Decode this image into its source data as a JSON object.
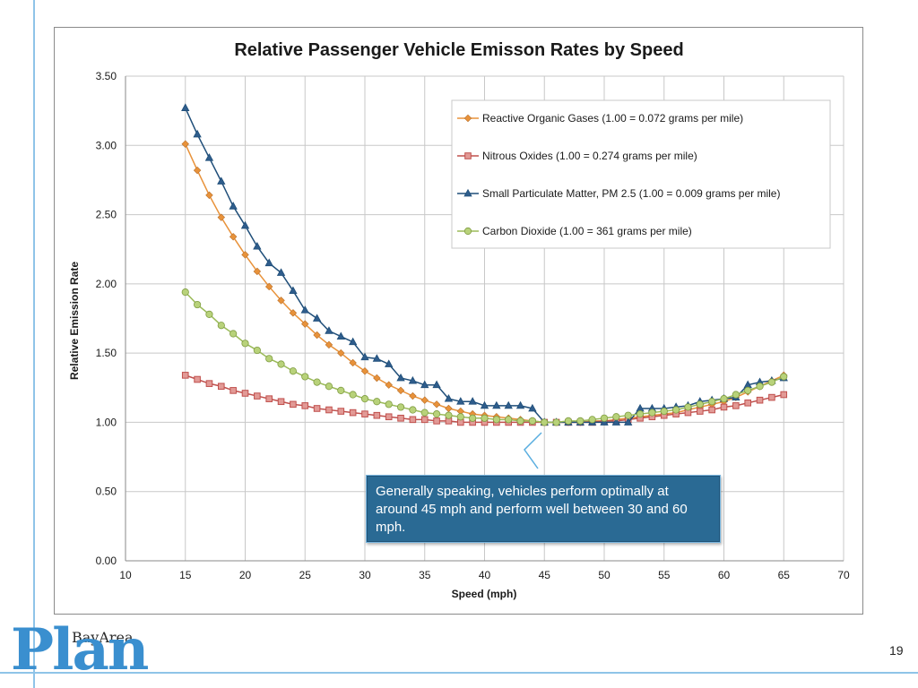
{
  "slide": {
    "page_number": "19",
    "logo": {
      "small_text": "BayArea",
      "big_text": "Plan"
    },
    "callout_text": "Generally speaking, vehicles perform optimally at around 45 mph and perform well between 30 and 60 mph."
  },
  "chart_data": {
    "type": "line",
    "title": "Relative Passenger Vehicle Emisson Rates by Speed",
    "xlabel": "Speed (mph)",
    "ylabel": "Relative Emission Rate",
    "xlim": [
      10,
      70
    ],
    "ylim": [
      0,
      3.5
    ],
    "xticks": [
      "10",
      "15",
      "20",
      "25",
      "30",
      "35",
      "40",
      "45",
      "50",
      "55",
      "60",
      "65",
      "70"
    ],
    "yticks": [
      "0.00",
      "0.50",
      "1.00",
      "1.50",
      "2.00",
      "2.50",
      "3.00",
      "3.50"
    ],
    "grid": true,
    "legend_position": "top-right",
    "x": [
      15,
      16,
      17,
      18,
      19,
      20,
      21,
      22,
      23,
      24,
      25,
      26,
      27,
      28,
      29,
      30,
      31,
      32,
      33,
      34,
      35,
      36,
      37,
      38,
      39,
      40,
      41,
      42,
      43,
      44,
      45,
      46,
      47,
      48,
      49,
      50,
      51,
      52,
      53,
      54,
      55,
      56,
      57,
      58,
      59,
      60,
      61,
      62,
      63,
      64,
      65
    ],
    "series": [
      {
        "name": "Reactive Organic Gases (1.00 = 0.072 grams per mile)",
        "color": "#e8923a",
        "marker": "diamond",
        "values": [
          3.01,
          2.82,
          2.64,
          2.48,
          2.34,
          2.21,
          2.09,
          1.98,
          1.88,
          1.79,
          1.71,
          1.63,
          1.56,
          1.5,
          1.43,
          1.37,
          1.32,
          1.27,
          1.23,
          1.19,
          1.16,
          1.13,
          1.1,
          1.08,
          1.06,
          1.05,
          1.04,
          1.03,
          1.02,
          1.01,
          1.0,
          1.0,
          1.0,
          1.0,
          1.01,
          1.01,
          1.02,
          1.03,
          1.04,
          1.05,
          1.06,
          1.07,
          1.09,
          1.11,
          1.13,
          1.15,
          1.18,
          1.22,
          1.26,
          1.3,
          1.34
        ]
      },
      {
        "name": "Nitrous Oxides (1.00 = 0.274 grams per mile)",
        "color": "#c0504d",
        "marker": "square",
        "values": [
          1.34,
          1.31,
          1.28,
          1.26,
          1.23,
          1.21,
          1.19,
          1.17,
          1.15,
          1.13,
          1.12,
          1.1,
          1.09,
          1.08,
          1.07,
          1.06,
          1.05,
          1.04,
          1.03,
          1.02,
          1.02,
          1.01,
          1.01,
          1.0,
          1.0,
          1.0,
          1.0,
          1.0,
          1.0,
          1.0,
          1.0,
          1.0,
          1.0,
          1.0,
          1.0,
          1.01,
          1.01,
          1.02,
          1.03,
          1.04,
          1.05,
          1.06,
          1.07,
          1.08,
          1.09,
          1.11,
          1.12,
          1.14,
          1.16,
          1.18,
          1.2
        ]
      },
      {
        "name": "Small Particulate Matter, PM 2.5 (1.00 = 0.009 grams per mile)",
        "color": "#1f4e79",
        "marker": "triangle",
        "values": [
          3.27,
          3.08,
          2.91,
          2.74,
          2.56,
          2.42,
          2.27,
          2.15,
          2.08,
          1.95,
          1.81,
          1.75,
          1.66,
          1.62,
          1.58,
          1.47,
          1.46,
          1.42,
          1.32,
          1.3,
          1.27,
          1.27,
          1.17,
          1.15,
          1.15,
          1.12,
          1.12,
          1.12,
          1.12,
          1.1,
          1.0,
          1.0,
          1.0,
          1.0,
          1.0,
          1.0,
          1.0,
          1.0,
          1.1,
          1.1,
          1.1,
          1.11,
          1.12,
          1.15,
          1.16,
          1.17,
          1.18,
          1.27,
          1.29,
          1.3,
          1.32
        ]
      },
      {
        "name": "Carbon Dioxide (1.00 = 361 grams per mile)",
        "color": "#9bbb59",
        "marker": "circle",
        "values": [
          1.94,
          1.85,
          1.78,
          1.7,
          1.64,
          1.57,
          1.52,
          1.46,
          1.42,
          1.37,
          1.33,
          1.29,
          1.26,
          1.23,
          1.2,
          1.17,
          1.15,
          1.13,
          1.11,
          1.09,
          1.07,
          1.06,
          1.05,
          1.04,
          1.03,
          1.03,
          1.02,
          1.02,
          1.01,
          1.01,
          1.0,
          1.0,
          1.01,
          1.01,
          1.02,
          1.03,
          1.04,
          1.05,
          1.06,
          1.07,
          1.08,
          1.09,
          1.11,
          1.13,
          1.15,
          1.17,
          1.2,
          1.23,
          1.26,
          1.29,
          1.33
        ]
      }
    ]
  }
}
